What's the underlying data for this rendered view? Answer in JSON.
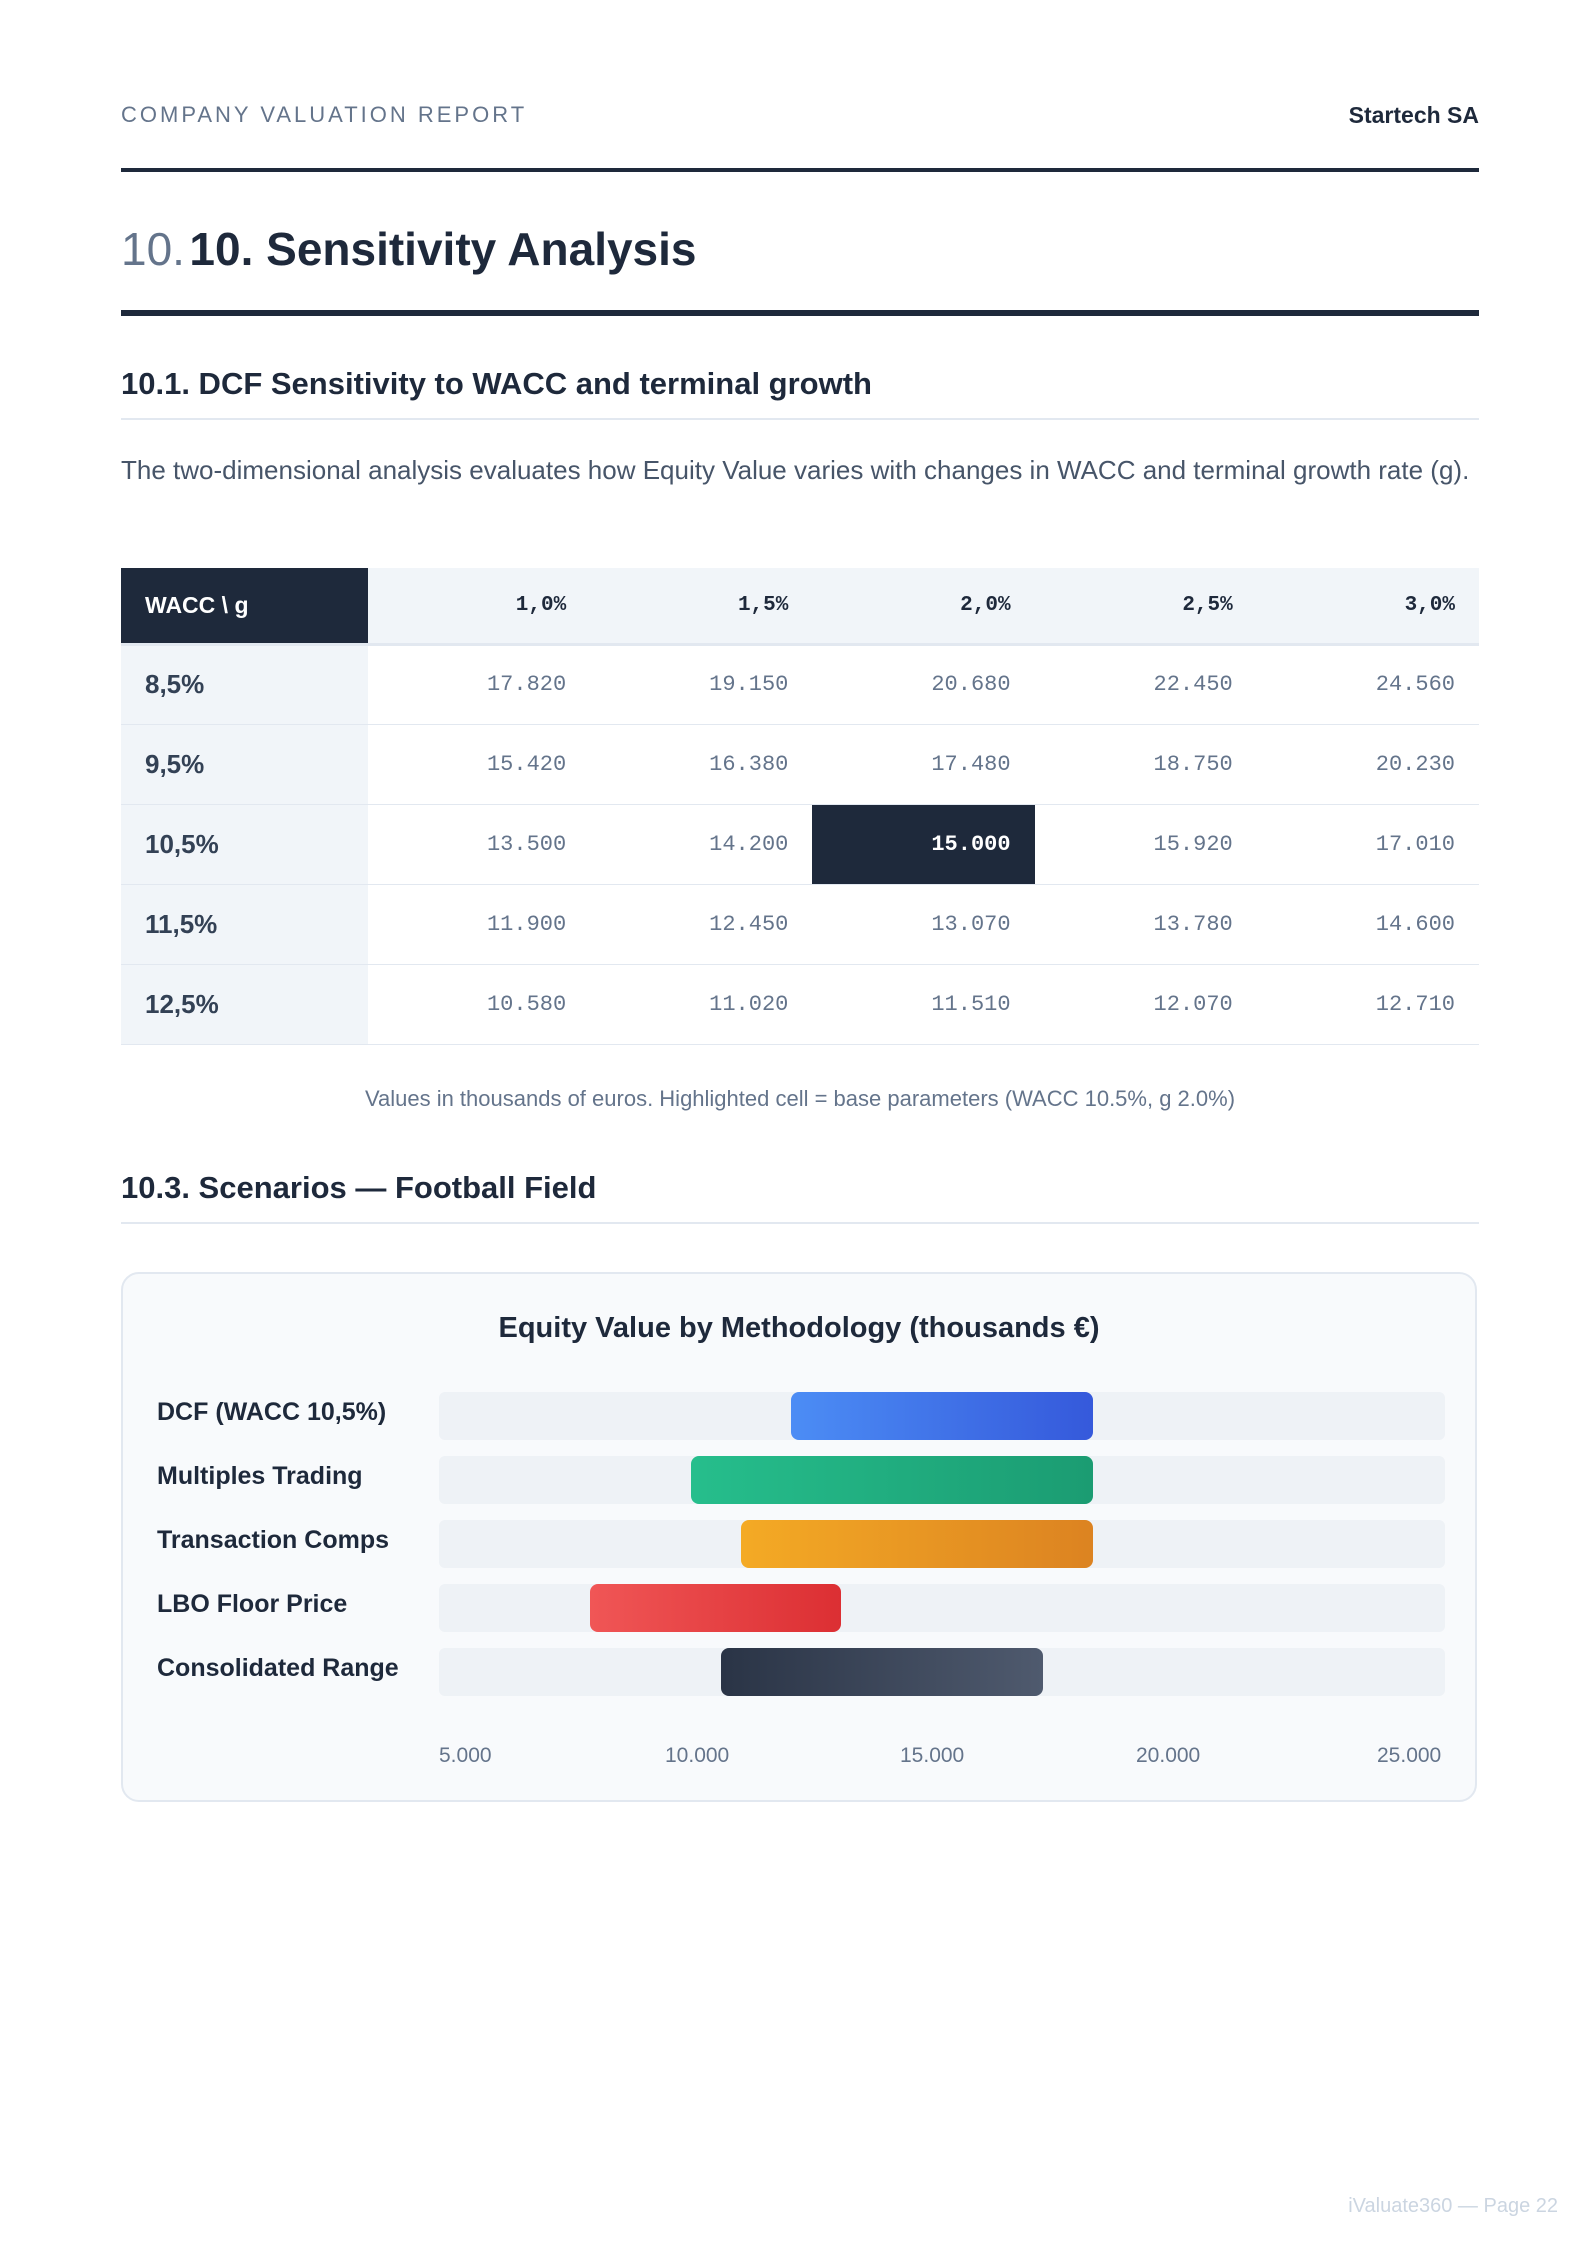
{
  "header": {
    "report_label": "COMPANY VALUATION REPORT",
    "company": "Startech SA"
  },
  "section": {
    "number": "10.",
    "title": "10. Sensitivity Analysis"
  },
  "subsection_1": {
    "title": "10.1. DCF Sensitivity to WACC and terminal growth",
    "paragraph": "The two-dimensional analysis evaluates how Equity Value varies with changes in WACC and terminal growth rate (g)."
  },
  "sensitivity_table": {
    "corner": "WACC \\ g",
    "columns": [
      "1,0%",
      "1,5%",
      "2,0%",
      "2,5%",
      "3,0%"
    ],
    "rows": [
      {
        "wacc": "8,5%",
        "values": [
          "17.820",
          "19.150",
          "20.680",
          "22.450",
          "24.560"
        ]
      },
      {
        "wacc": "9,5%",
        "values": [
          "15.420",
          "16.380",
          "17.480",
          "18.750",
          "20.230"
        ]
      },
      {
        "wacc": "10,5%",
        "values": [
          "13.500",
          "14.200",
          "15.000",
          "15.920",
          "17.010"
        ]
      },
      {
        "wacc": "11,5%",
        "values": [
          "11.900",
          "12.450",
          "13.070",
          "13.780",
          "14.600"
        ]
      },
      {
        "wacc": "12,5%",
        "values": [
          "10.580",
          "11.020",
          "11.510",
          "12.070",
          "12.710"
        ]
      }
    ],
    "base_row": 2,
    "base_col": 2,
    "note": "Values in thousands of euros. Highlighted cell = base parameters (WACC 10.5%, g 2.0%)"
  },
  "subsection_3": {
    "title": "10.3. Scenarios — Football Field"
  },
  "chart_data": {
    "type": "bar",
    "orientation": "horizontal-range",
    "title": "Equity Value by Methodology (thousands €)",
    "xlim": [
      5000,
      25000
    ],
    "ticks": [
      5000,
      10000,
      15000,
      20000,
      25000
    ],
    "tick_labels": [
      "5.000",
      "10.000",
      "15.000",
      "20.000",
      "25.000"
    ],
    "categories": [
      "DCF (WACC 10,5%)",
      "Multiples Trading",
      "Transaction Comps",
      "LBO Floor Price",
      "Consolidated Range"
    ],
    "ranges": [
      [
        12000,
        18000
      ],
      [
        10000,
        18000
      ],
      [
        11000,
        18000
      ],
      [
        8000,
        13000
      ],
      [
        10600,
        17000
      ]
    ],
    "colors": [
      [
        "#4c8df5",
        "#3559db"
      ],
      [
        "#26be8c",
        "#1b9c72"
      ],
      [
        "#f4aa25",
        "#dc8321"
      ],
      [
        "#f05656",
        "#dc2f33"
      ],
      [
        "#2a3446",
        "#4f5a6e"
      ]
    ]
  },
  "footer": {
    "page_label": "iValuate360 — Page 22"
  }
}
